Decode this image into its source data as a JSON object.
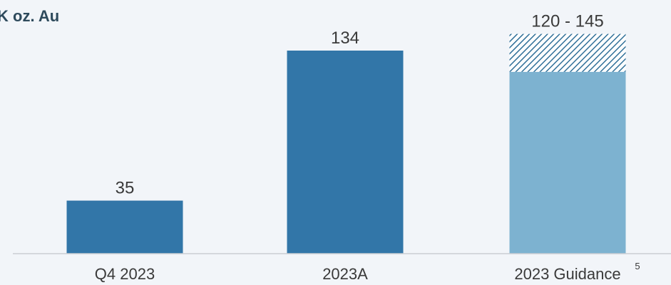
{
  "chart_data": {
    "type": "bar",
    "unit_label": "K oz. Au",
    "categories": [
      "Q4 2023",
      "2023A",
      "2023 Guidance"
    ],
    "values": [
      35,
      134,
      120
    ],
    "range_high": [
      null,
      null,
      145
    ],
    "data_labels": [
      "35",
      "134",
      "120 - 145"
    ],
    "footnote_marker": "5",
    "ylim": [
      0,
      160
    ],
    "grid": false,
    "colors": {
      "actual": "#3276a8",
      "guidance": "#7db2d0",
      "hatch": "#2f6f98",
      "baseline": "#c9cdd2",
      "label": "#3a3a3a"
    }
  }
}
